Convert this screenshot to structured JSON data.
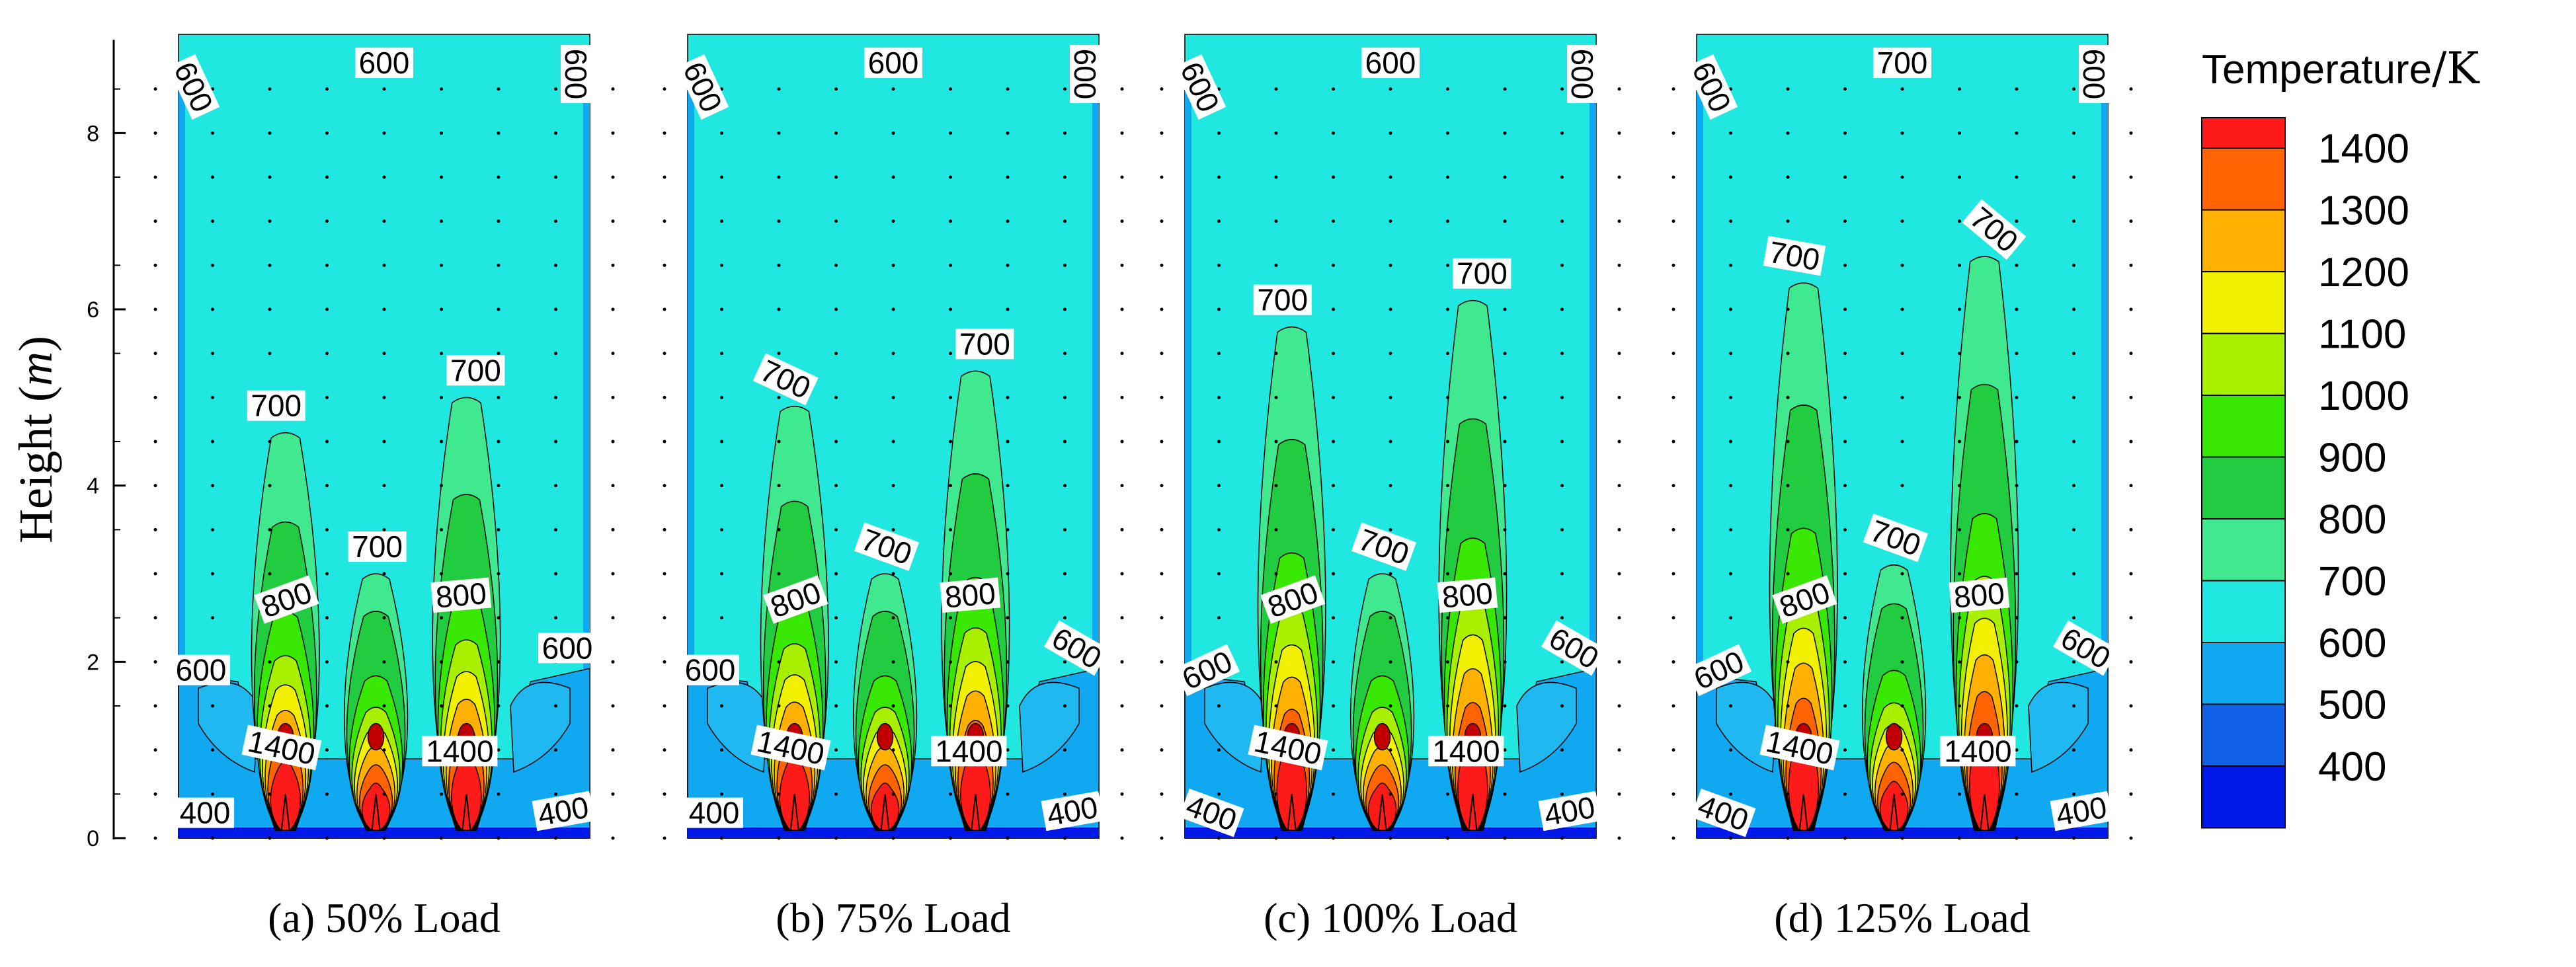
{
  "chart_data": {
    "type": "contour",
    "ylabel": "Height",
    "ylabel_unit": "m",
    "ylim": [
      0,
      9
    ],
    "yticks": [
      "0",
      "2",
      "4",
      "6",
      "8"
    ],
    "colorbar": {
      "title": "Temperature",
      "unit": "/K",
      "levels": [
        "1400",
        "1300",
        "1200",
        "1100",
        "1000",
        "900",
        "800",
        "700",
        "600",
        "500",
        "400"
      ],
      "colors": [
        "#ff1a1a",
        "#ff6400",
        "#ffb000",
        "#f0f000",
        "#a8f000",
        "#38e800",
        "#22cc40",
        "#40e890",
        "#20e8e0",
        "#10a8f0",
        "#1060e8",
        "#0018e8"
      ]
    },
    "panels": [
      {
        "caption": "(a) 50% Load",
        "top_label": "600",
        "flame_heights_m": [
          4.6,
          3.0,
          5.0
        ],
        "labels": {
          "left_wall": "600",
          "right_wall": "600",
          "mid_left": "600",
          "mid_right": "600",
          "bottom_left": "400",
          "bottom_right": "400",
          "flame_top_left": "700",
          "flame_top_center": "700",
          "flame_top_right": "700",
          "flame_mid_left": "800",
          "flame_mid_right": "800",
          "core_left": "1400",
          "core_right": "1400"
        }
      },
      {
        "caption": "(b) 75% Load",
        "top_label": "600",
        "flame_heights_m": [
          4.9,
          3.0,
          5.3
        ],
        "labels": {
          "left_wall": "600",
          "right_wall": "600",
          "mid_left": "600",
          "mid_right": "600",
          "bottom_left": "400",
          "bottom_right": "400",
          "flame_top_left": "700",
          "flame_top_center": "700",
          "flame_top_right": "700",
          "flame_mid_left": "800",
          "flame_mid_right": "800",
          "core_left": "1400",
          "core_right": "1400"
        }
      },
      {
        "caption": "(c) 100% Load",
        "top_label": "600",
        "flame_heights_m": [
          5.8,
          3.0,
          6.1
        ],
        "labels": {
          "left_wall": "600",
          "right_wall": "600",
          "mid_left": "600",
          "mid_right": "600",
          "bottom_left": "400",
          "bottom_right": "400",
          "flame_top_left": "700",
          "flame_top_center": "700",
          "flame_top_right": "700",
          "flame_mid_left": "800",
          "flame_mid_right": "800",
          "core_left": "1400",
          "core_right": "1400"
        }
      },
      {
        "caption": "(d) 125% Load",
        "top_label": "700",
        "flame_heights_m": [
          6.3,
          3.1,
          6.6
        ],
        "labels": {
          "left_wall": "600",
          "right_wall": "600",
          "mid_left": "600",
          "mid_right": "600",
          "bottom_left": "400",
          "bottom_right": "400",
          "flame_top_left": "700",
          "flame_top_center": "700",
          "flame_top_right": "700",
          "flame_mid_left": "800",
          "flame_mid_right": "800",
          "core_left": "1400",
          "core_right": "1400"
        }
      }
    ]
  }
}
